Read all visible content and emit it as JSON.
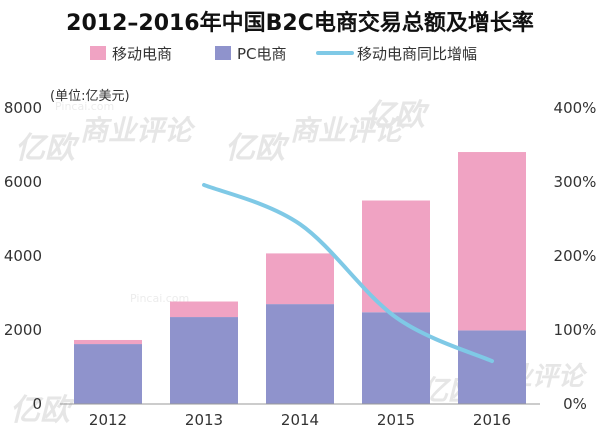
{
  "chart_data": {
    "type": "bar",
    "title": "2012–2016年中国B2C电商交易总额及增长率",
    "unit_label": "(单位:亿美元)",
    "categories": [
      "2012",
      "2013",
      "2014",
      "2015",
      "2016"
    ],
    "series": [
      {
        "name": "PC电商",
        "kind": "stacked-bar",
        "axis": "left",
        "color": "#8f93cc",
        "values": [
          1620,
          2350,
          2700,
          2480,
          1990
        ]
      },
      {
        "name": "移动电商",
        "kind": "stacked-bar",
        "axis": "left",
        "color": "#f0a3c3",
        "values": [
          110,
          420,
          1370,
          3020,
          4820
        ]
      },
      {
        "name": "移动电商同比增幅",
        "kind": "line",
        "axis": "right",
        "color": "#7fc9e6",
        "values": [
          null,
          296,
          243,
          117,
          58
        ]
      }
    ],
    "left_axis": {
      "min": 0,
      "max": 8000,
      "ticks": [
        "0",
        "2000",
        "4000",
        "6000",
        "8000"
      ],
      "tick_values": [
        0,
        2000,
        4000,
        6000,
        8000
      ]
    },
    "right_axis": {
      "min": 0,
      "max": 400,
      "ticks": [
        "0%",
        "100%",
        "200%",
        "300%",
        "400%"
      ],
      "tick_values": [
        0,
        100,
        200,
        300,
        400
      ]
    },
    "legend_position": "top",
    "grid": false
  },
  "watermark": {
    "brand": "亿欧",
    "text": "商业评论",
    "site": "Pincai.com"
  }
}
